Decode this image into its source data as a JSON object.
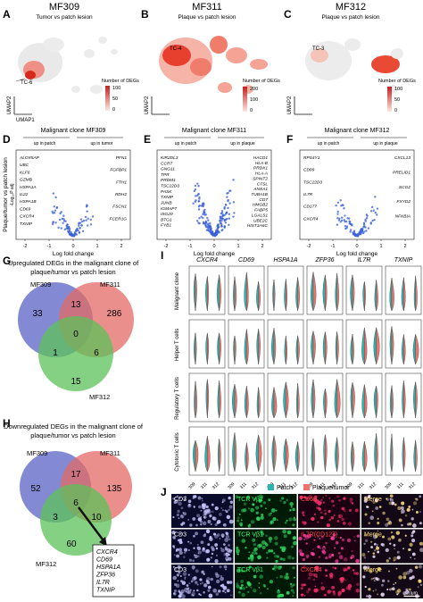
{
  "panels": {
    "A": {
      "letter": "A",
      "title": "MF309",
      "subtitle": "Tumor vs patch lesion",
      "cluster": "TC-6",
      "legend_title": "Number of DEGs",
      "legend_ticks": [
        "100",
        "50",
        "0"
      ],
      "xaxis": "UMAP1",
      "yaxis": "UMAP2"
    },
    "B": {
      "letter": "B",
      "title": "MF311",
      "subtitle": "Plaque vs patch lesion",
      "cluster": "TC-4",
      "legend_title": "Number of DEGs",
      "legend_ticks": [
        "200",
        "100",
        "0"
      ],
      "yaxis": "UMAP2"
    },
    "C": {
      "letter": "C",
      "title": "MF312",
      "subtitle": "Plaque vs patch lesion",
      "cluster": "TC-3",
      "legend_title": "Number of DEGs",
      "legend_ticks": [
        "100",
        "50",
        "0"
      ],
      "yaxis": "UMAP2"
    },
    "D": {
      "letter": "D",
      "title": "Malignant clone MF309",
      "left_label": "up in patch",
      "right_label": "up in tumor",
      "ylabel": "Plaque/tumor vs patch lesion",
      "ylabel2": "-Log₁₀P adj",
      "xlabel": "Log fold change",
      "xticks": [
        "-2",
        "-1",
        "0",
        "1",
        "2"
      ],
      "genes_left": [
        "ALOX5AP",
        "UBC",
        "KLF6",
        "GZMB",
        "HSPA1A",
        "IL22",
        "HSPA1B",
        "CD69",
        "CXCR4",
        "TXNIP"
      ],
      "genes_right": [
        "PFN1",
        "FGFBP1",
        "FTH1",
        "RDH2",
        "FSCN1",
        "FCER1G"
      ]
    },
    "E": {
      "letter": "E",
      "title": "Malignant clone MF311",
      "left_label": "up in patch",
      "right_label": "up in plaque",
      "xlabel": "Log fold change",
      "xticks": [
        "-2",
        "-1",
        "0",
        "1",
        "2"
      ],
      "genes_left": [
        "KIR2DL3",
        "CCR7",
        "GNG11",
        "TPR",
        "PRDM1",
        "TSC22D3",
        "PASK",
        "TXNIP",
        "JUNB",
        "IGMAP7",
        "ISG20",
        "BTG1",
        "FYB1"
      ],
      "genes_right": [
        "HACD1",
        "HLA-B",
        "PRDX1",
        "HLA-A",
        "SPINT2",
        "CTSL",
        "ANXA1",
        "TUBA1B",
        "CD7",
        "HMGB2",
        "FABP5",
        "LGALS1",
        "UBE2C",
        "HIST1H4C"
      ]
    },
    "F": {
      "letter": "F",
      "title": "Malignant clone MF312",
      "left_label": "up in patch",
      "right_label": "up in plaque",
      "xlabel": "Log fold change",
      "xticks": [
        "-2",
        "-1",
        "0",
        "1",
        "2"
      ],
      "genes_left": [
        "RPS4Y1",
        "CD99",
        "TSC22D3",
        "IL7R",
        "CD177",
        "CXCR4"
      ],
      "genes_right": [
        "CXCL13",
        "PRELID1",
        "SCG2",
        "FXYD2",
        "NFKBIA"
      ]
    },
    "G": {
      "letter": "G",
      "title_line1": "Upregulated DEGs in the malignant clone of",
      "title_line2": "plaque/tumor vs patch lesion",
      "set1": "MF309",
      "set2": "MF311",
      "set3": "MF312",
      "counts": {
        "only1": "33",
        "only2": "286",
        "only3": "15",
        "n12": "13",
        "n13": "1",
        "n23": "6",
        "n123": "0"
      }
    },
    "H": {
      "letter": "H",
      "title_line1": "Downregulated DEGs in the malignant clone of",
      "title_line2": "plaque/tumor vs patch lesion",
      "set1": "MF309",
      "set2": "MF311",
      "set3": "MF312",
      "counts": {
        "only1": "52",
        "only2": "135",
        "only3": "60",
        "n12": "17",
        "n13": "3",
        "n23": "10",
        "n123": "6"
      },
      "box_genes": [
        "CXCR4",
        "CD69",
        "HSPA1A",
        "ZFP36",
        "IL7R",
        "TXNIP"
      ]
    },
    "I": {
      "letter": "I",
      "genes": [
        "CXCR4",
        "CD69",
        "HSPA1A",
        "ZFP36",
        "IL7R",
        "TXNIP"
      ],
      "rows": [
        "Malignant clone",
        "Helper T cells",
        "Regulatory T cells",
        "Cytotoxic T cells"
      ],
      "xticks": [
        "309",
        "311",
        "312"
      ],
      "legend": [
        "Patch",
        "Plaque/tumor"
      ],
      "colors": {
        "patch": "#2bb3b1",
        "plaque": "#f0716a"
      }
    },
    "J": {
      "letter": "J",
      "rows": [
        [
          "CD3",
          "TCR Vβ2",
          "CD69",
          "Merge"
        ],
        [
          "CD3",
          "TCR Vβ1",
          "IL7R(CD127)",
          "Merge"
        ],
        [
          "CD3",
          "TCR Vβ1",
          "CXCR4",
          "Merge"
        ]
      ],
      "scalebar": "20μm"
    }
  }
}
